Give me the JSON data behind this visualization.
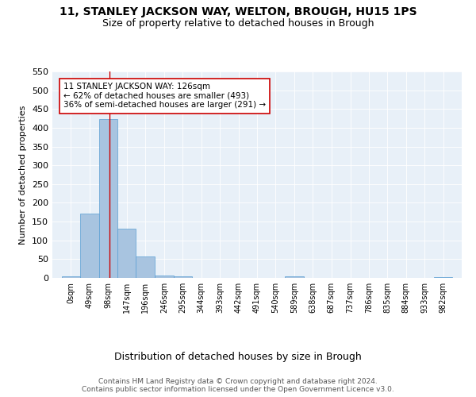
{
  "suptitle": "11, STANLEY JACKSON WAY, WELTON, BROUGH, HU15 1PS",
  "title": "Size of property relative to detached houses in Brough",
  "xlabel": "Distribution of detached houses by size in Brough",
  "ylabel": "Number of detached properties",
  "bar_edges": [
    0,
    49,
    98,
    147,
    196,
    246,
    295,
    344,
    393,
    442,
    491,
    540,
    589,
    638,
    687,
    737,
    786,
    835,
    884,
    933,
    982
  ],
  "bar_heights": [
    5,
    172,
    424,
    131,
    57,
    7,
    5,
    1,
    1,
    1,
    1,
    1,
    5,
    1,
    1,
    1,
    1,
    1,
    1,
    1,
    3
  ],
  "bar_color": "#a8c4e0",
  "bar_edge_color": "#5a9fd4",
  "vline_x": 126,
  "vline_color": "#cc0000",
  "annotation_text": "11 STANLEY JACKSON WAY: 126sqm\n← 62% of detached houses are smaller (493)\n36% of semi-detached houses are larger (291) →",
  "annotation_box_color": "#ffffff",
  "annotation_box_edge": "#cc0000",
  "annotation_fontsize": 7.5,
  "ylim": [
    0,
    550
  ],
  "background_color": "#e8f0f8",
  "tick_labels": [
    "0sqm",
    "49sqm",
    "98sqm",
    "147sqm",
    "196sqm",
    "246sqm",
    "295sqm",
    "344sqm",
    "393sqm",
    "442sqm",
    "491sqm",
    "540sqm",
    "589sqm",
    "638sqm",
    "687sqm",
    "737sqm",
    "786sqm",
    "835sqm",
    "884sqm",
    "933sqm",
    "982sqm"
  ],
  "footer_text": "Contains HM Land Registry data © Crown copyright and database right 2024.\nContains public sector information licensed under the Open Government Licence v3.0.",
  "suptitle_fontsize": 10,
  "title_fontsize": 9,
  "xlabel_fontsize": 9,
  "ylabel_fontsize": 8,
  "tick_fontsize": 7,
  "footer_fontsize": 6.5
}
